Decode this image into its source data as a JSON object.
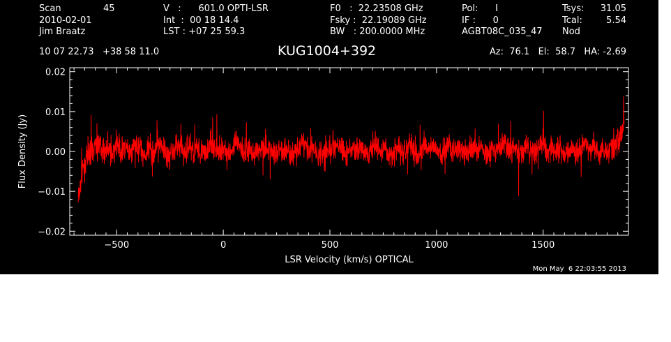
{
  "header": {
    "scan_label": "Scan",
    "scan_value": "45",
    "date": "2010-02-01",
    "observer": "Jim Braatz",
    "v_line": "V   :      601.0 OPTI-LSR",
    "int_line": "Int  :  00 18 14.4",
    "lst_line": "LST : +07 25 59.3",
    "f0_line": "F0   :  22.23508 GHz",
    "fsky_line": "Fsky :  22.19089 GHz",
    "bw_line": "BW   : 200.0000 MHz",
    "pol_line": "Pol:      I",
    "if_line": "IF :      0",
    "project": "AGBT08C_035_47",
    "tsys_label": "Tsys:",
    "tsys_value": "31.05",
    "tcal_label": "Tcal:",
    "tcal_value": "5.54",
    "mode": "Nod",
    "coords": "10 07 22.73   +38 58 11.0",
    "source": "KUG1004+392",
    "az_line": "Az:  76.1   El:  58.7   HA: -2.69"
  },
  "footer": {
    "timestamp": "Mon May  6 22:03:55 2013"
  },
  "colors": {
    "background": "#000000",
    "axes": "#ffffff",
    "trace": "#ff0000"
  },
  "chart_data": {
    "type": "line",
    "title": "KUG1004+392",
    "xlabel": "LSR Velocity (km/s) OPTICAL",
    "ylabel": "Flux Density (Jy)",
    "xlim": [
      -720,
      1900
    ],
    "ylim": [
      -0.021,
      0.021
    ],
    "xticks": [
      -500,
      0,
      500,
      1000,
      1500
    ],
    "xtick_labels": [
      "−500",
      "0",
      "500",
      "1000",
      "1500"
    ],
    "yticks": [
      -0.02,
      -0.01,
      0.0,
      0.01,
      0.02
    ],
    "ytick_labels": [
      "−0.02",
      "−0.01",
      "0.00",
      "0.01",
      "0.02"
    ],
    "grid": false,
    "series": [
      {
        "color": "#ff0000",
        "x": [
          -680,
          -660,
          -640,
          -620,
          -600,
          -580,
          -560,
          -540,
          -520,
          -500,
          -480,
          -460,
          -440,
          -420,
          -400,
          -380,
          -360,
          -340,
          -320,
          -300,
          -280,
          -260,
          -240,
          -220,
          -200,
          -180,
          -160,
          -140,
          -120,
          -100,
          -80,
          -60,
          -40,
          -20,
          0,
          20,
          40,
          60,
          80,
          100,
          120,
          140,
          160,
          180,
          200,
          220,
          240,
          260,
          280,
          300,
          320,
          340,
          360,
          380,
          400,
          420,
          440,
          460,
          480,
          500,
          520,
          540,
          560,
          580,
          600,
          620,
          640,
          660,
          680,
          700,
          720,
          740,
          760,
          780,
          800,
          820,
          840,
          860,
          880,
          900,
          920,
          940,
          960,
          980,
          1000,
          1020,
          1040,
          1060,
          1080,
          1100,
          1120,
          1140,
          1160,
          1180,
          1200,
          1220,
          1240,
          1260,
          1280,
          1300,
          1320,
          1340,
          1360,
          1380,
          1400,
          1420,
          1440,
          1460,
          1480,
          1500,
          1520,
          1540,
          1560,
          1580,
          1600,
          1620,
          1640,
          1660,
          1680,
          1700,
          1720,
          1740,
          1760,
          1780,
          1800,
          1820,
          1840,
          1860,
          1880
        ],
        "y": [
          -0.012,
          -0.005,
          -0.002,
          0.0,
          0.001,
          0.002,
          0.0,
          0.001,
          -0.001,
          0.002,
          0.0,
          0.001,
          -0.001,
          0.001,
          0.002,
          0.0,
          -0.001,
          0.001,
          0.0,
          0.002,
          0.001,
          -0.001,
          0.0,
          0.001,
          0.001,
          -0.001,
          0.002,
          0.0,
          0.001,
          0.0,
          -0.001,
          0.002,
          0.001,
          0.0,
          0.001,
          -0.001,
          0.0,
          0.002,
          0.001,
          0.0,
          0.001,
          -0.001,
          0.0,
          0.001,
          0.002,
          0.0,
          -0.001,
          0.001,
          0.0,
          0.001,
          -0.001,
          0.0,
          0.001,
          0.002,
          0.0,
          0.001,
          0.0,
          -0.001,
          0.001,
          0.0,
          0.002,
          0.001,
          0.0,
          -0.001,
          0.001,
          0.0,
          0.001,
          0.0,
          -0.001,
          0.001,
          0.002,
          0.0,
          0.001,
          -0.001,
          0.0,
          0.001,
          0.0,
          0.001,
          0.002,
          0.0,
          -0.001,
          0.001,
          0.0,
          0.001,
          0.0,
          -0.001,
          0.001,
          0.002,
          0.0,
          0.001,
          0.0,
          -0.001,
          0.001,
          0.0,
          0.001,
          0.0,
          -0.001,
          0.001,
          0.0,
          0.001,
          0.002,
          0.0,
          0.001,
          -0.001,
          0.0,
          0.001,
          0.0,
          -0.001,
          0.001,
          0.002,
          0.0,
          0.001,
          0.0,
          0.001,
          -0.001,
          0.0,
          0.001,
          0.0,
          0.001,
          0.002,
          0.0,
          0.001,
          0.0,
          0.001,
          0.0,
          0.001,
          0.002,
          0.003,
          0.008
        ]
      }
    ]
  }
}
